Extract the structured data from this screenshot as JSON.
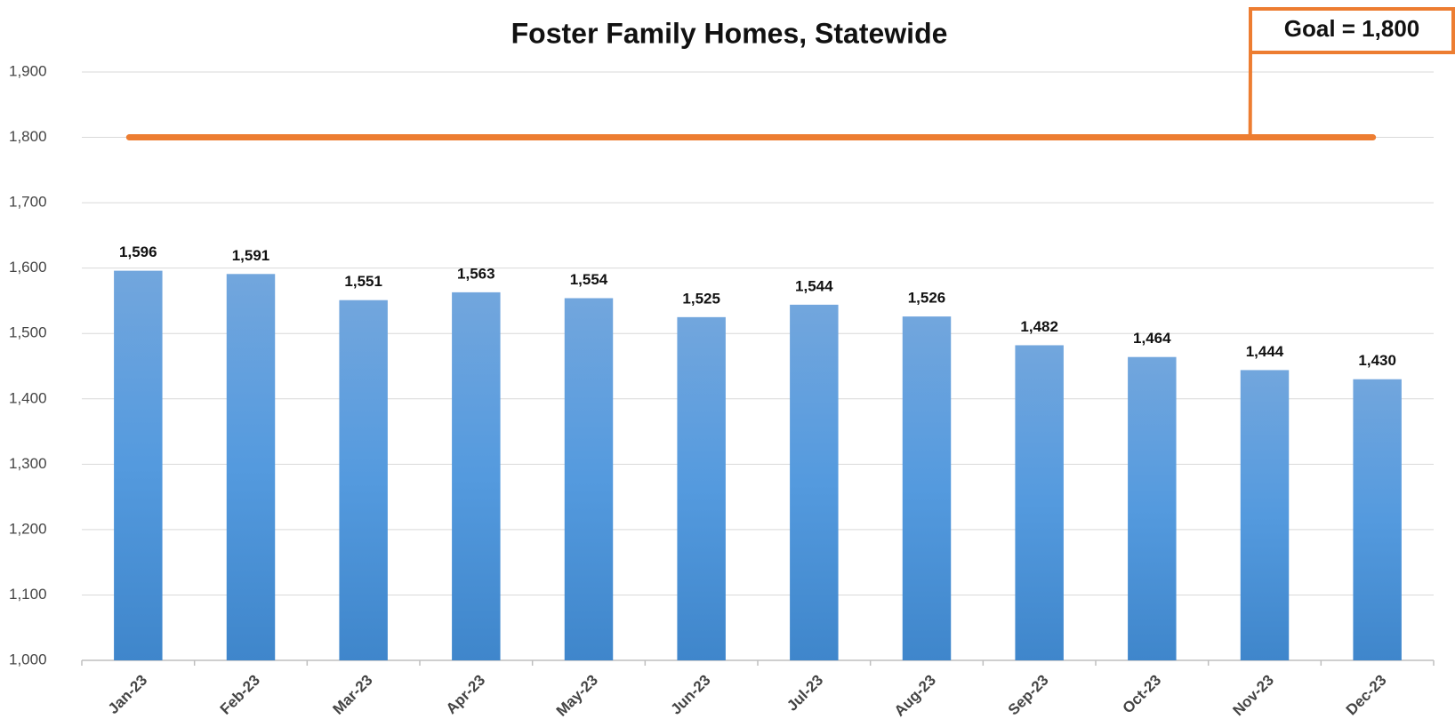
{
  "chart_data": {
    "type": "bar",
    "title": "Foster Family Homes, Statewide",
    "categories": [
      "Jan-23",
      "Feb-23",
      "Mar-23",
      "Apr-23",
      "May-23",
      "Jun-23",
      "Jul-23",
      "Aug-23",
      "Sep-23",
      "Oct-23",
      "Nov-23",
      "Dec-23"
    ],
    "values": [
      1596,
      1591,
      1551,
      1563,
      1554,
      1525,
      1544,
      1526,
      1482,
      1464,
      1444,
      1430
    ],
    "value_labels": [
      "1,596",
      "1,591",
      "1,551",
      "1,563",
      "1,554",
      "1,525",
      "1,544",
      "1,526",
      "1,482",
      "1,464",
      "1,444",
      "1,430"
    ],
    "color": "#4f94d6",
    "ylim": [
      1000,
      1900
    ],
    "yticks": [
      {
        "value": 1000,
        "label": "1,000"
      },
      {
        "value": 1100,
        "label": "1,100"
      },
      {
        "value": 1200,
        "label": "1,200"
      },
      {
        "value": 1300,
        "label": "1,300"
      },
      {
        "value": 1400,
        "label": "1,400"
      },
      {
        "value": 1500,
        "label": "1,500"
      },
      {
        "value": 1600,
        "label": "1,600"
      },
      {
        "value": 1700,
        "label": "1,700"
      },
      {
        "value": 1800,
        "label": "1,800"
      },
      {
        "value": 1900,
        "label": "1,900"
      }
    ],
    "grid": true,
    "goal": {
      "value": 1800,
      "label": "Goal = 1,800",
      "color": "#ed7d31"
    }
  }
}
